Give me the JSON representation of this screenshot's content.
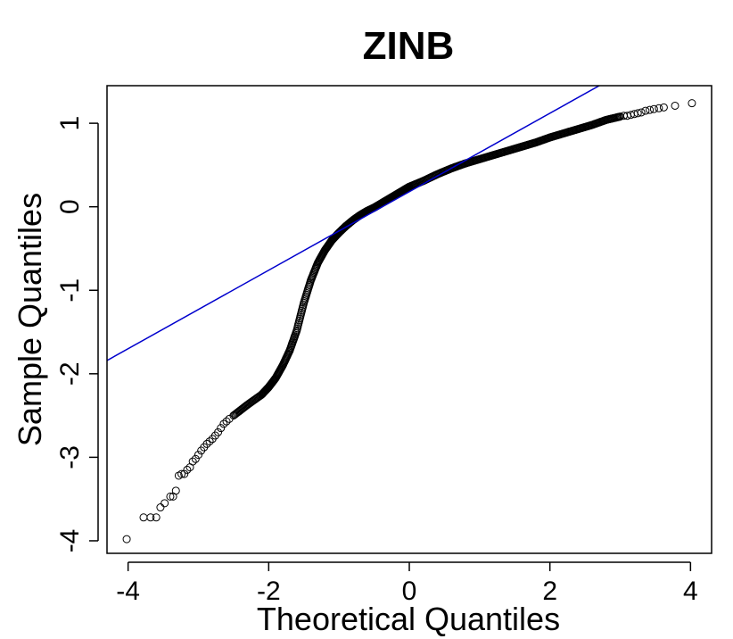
{
  "chart_data": {
    "type": "scatter",
    "title": "ZINB",
    "xlabel": "Theoretical Quantiles",
    "ylabel": "Sample Quantiles",
    "xlim": [
      -4.3,
      4.3
    ],
    "ylim": [
      -4.15,
      1.45
    ],
    "xticks": [
      "-4",
      "-2",
      "0",
      "2",
      "4"
    ],
    "yticks": [
      "-4",
      "-3",
      "-2",
      "-1",
      "0",
      "1"
    ],
    "grid": false,
    "marker": "open-circle",
    "reference_line": {
      "intercept": 0.18,
      "slope": 0.47,
      "color": "#0000cd"
    },
    "dense_curve": {
      "x": [
        -2.5,
        -2.3,
        -2.1,
        -2.0,
        -1.9,
        -1.8,
        -1.7,
        -1.6,
        -1.5,
        -1.4,
        -1.3,
        -1.2,
        -1.1,
        -1.0,
        -0.9,
        -0.8,
        -0.7,
        -0.6,
        -0.5,
        -0.4,
        -0.3,
        -0.2,
        -0.1,
        0.0,
        0.2,
        0.4,
        0.6,
        0.8,
        1.0,
        1.2,
        1.4,
        1.6,
        1.8,
        2.0,
        2.2,
        2.4,
        2.6,
        2.8,
        3.0
      ],
      "y": [
        -2.5,
        -2.37,
        -2.25,
        -2.16,
        -2.05,
        -1.9,
        -1.72,
        -1.48,
        -1.15,
        -0.88,
        -0.67,
        -0.52,
        -0.4,
        -0.31,
        -0.23,
        -0.16,
        -0.1,
        -0.05,
        -0.01,
        0.04,
        0.09,
        0.14,
        0.19,
        0.24,
        0.31,
        0.39,
        0.46,
        0.52,
        0.57,
        0.62,
        0.67,
        0.72,
        0.77,
        0.83,
        0.88,
        0.93,
        0.98,
        1.04,
        1.08
      ]
    },
    "tail_points": [
      {
        "x": -4.02,
        "y": -3.98
      },
      {
        "x": -3.78,
        "y": -3.72
      },
      {
        "x": -3.68,
        "y": -3.72
      },
      {
        "x": -3.6,
        "y": -3.72
      },
      {
        "x": -3.54,
        "y": -3.6
      },
      {
        "x": -3.48,
        "y": -3.55
      },
      {
        "x": -3.4,
        "y": -3.47
      },
      {
        "x": -3.36,
        "y": -3.47
      },
      {
        "x": -3.32,
        "y": -3.4
      },
      {
        "x": -3.28,
        "y": -3.22
      },
      {
        "x": -3.24,
        "y": -3.2
      },
      {
        "x": -3.2,
        "y": -3.2
      },
      {
        "x": -3.16,
        "y": -3.15
      },
      {
        "x": -3.12,
        "y": -3.12
      },
      {
        "x": -3.08,
        "y": -3.05
      },
      {
        "x": -3.04,
        "y": -3.02
      },
      {
        "x": -3.0,
        "y": -2.97
      },
      {
        "x": -2.96,
        "y": -2.92
      },
      {
        "x": -2.92,
        "y": -2.88
      },
      {
        "x": -2.88,
        "y": -2.84
      },
      {
        "x": -2.84,
        "y": -2.81
      },
      {
        "x": -2.8,
        "y": -2.78
      },
      {
        "x": -2.76,
        "y": -2.74
      },
      {
        "x": -2.72,
        "y": -2.7
      },
      {
        "x": -2.68,
        "y": -2.65
      },
      {
        "x": -2.64,
        "y": -2.6
      },
      {
        "x": -2.6,
        "y": -2.57
      },
      {
        "x": -2.56,
        "y": -2.54
      },
      {
        "x": 3.05,
        "y": 1.09
      },
      {
        "x": 3.1,
        "y": 1.09
      },
      {
        "x": 3.15,
        "y": 1.1
      },
      {
        "x": 3.2,
        "y": 1.11
      },
      {
        "x": 3.25,
        "y": 1.12
      },
      {
        "x": 3.3,
        "y": 1.13
      },
      {
        "x": 3.36,
        "y": 1.15
      },
      {
        "x": 3.42,
        "y": 1.16
      },
      {
        "x": 3.48,
        "y": 1.17
      },
      {
        "x": 3.55,
        "y": 1.18
      },
      {
        "x": 3.62,
        "y": 1.19
      },
      {
        "x": 3.78,
        "y": 1.21
      },
      {
        "x": 4.02,
        "y": 1.24
      }
    ]
  }
}
